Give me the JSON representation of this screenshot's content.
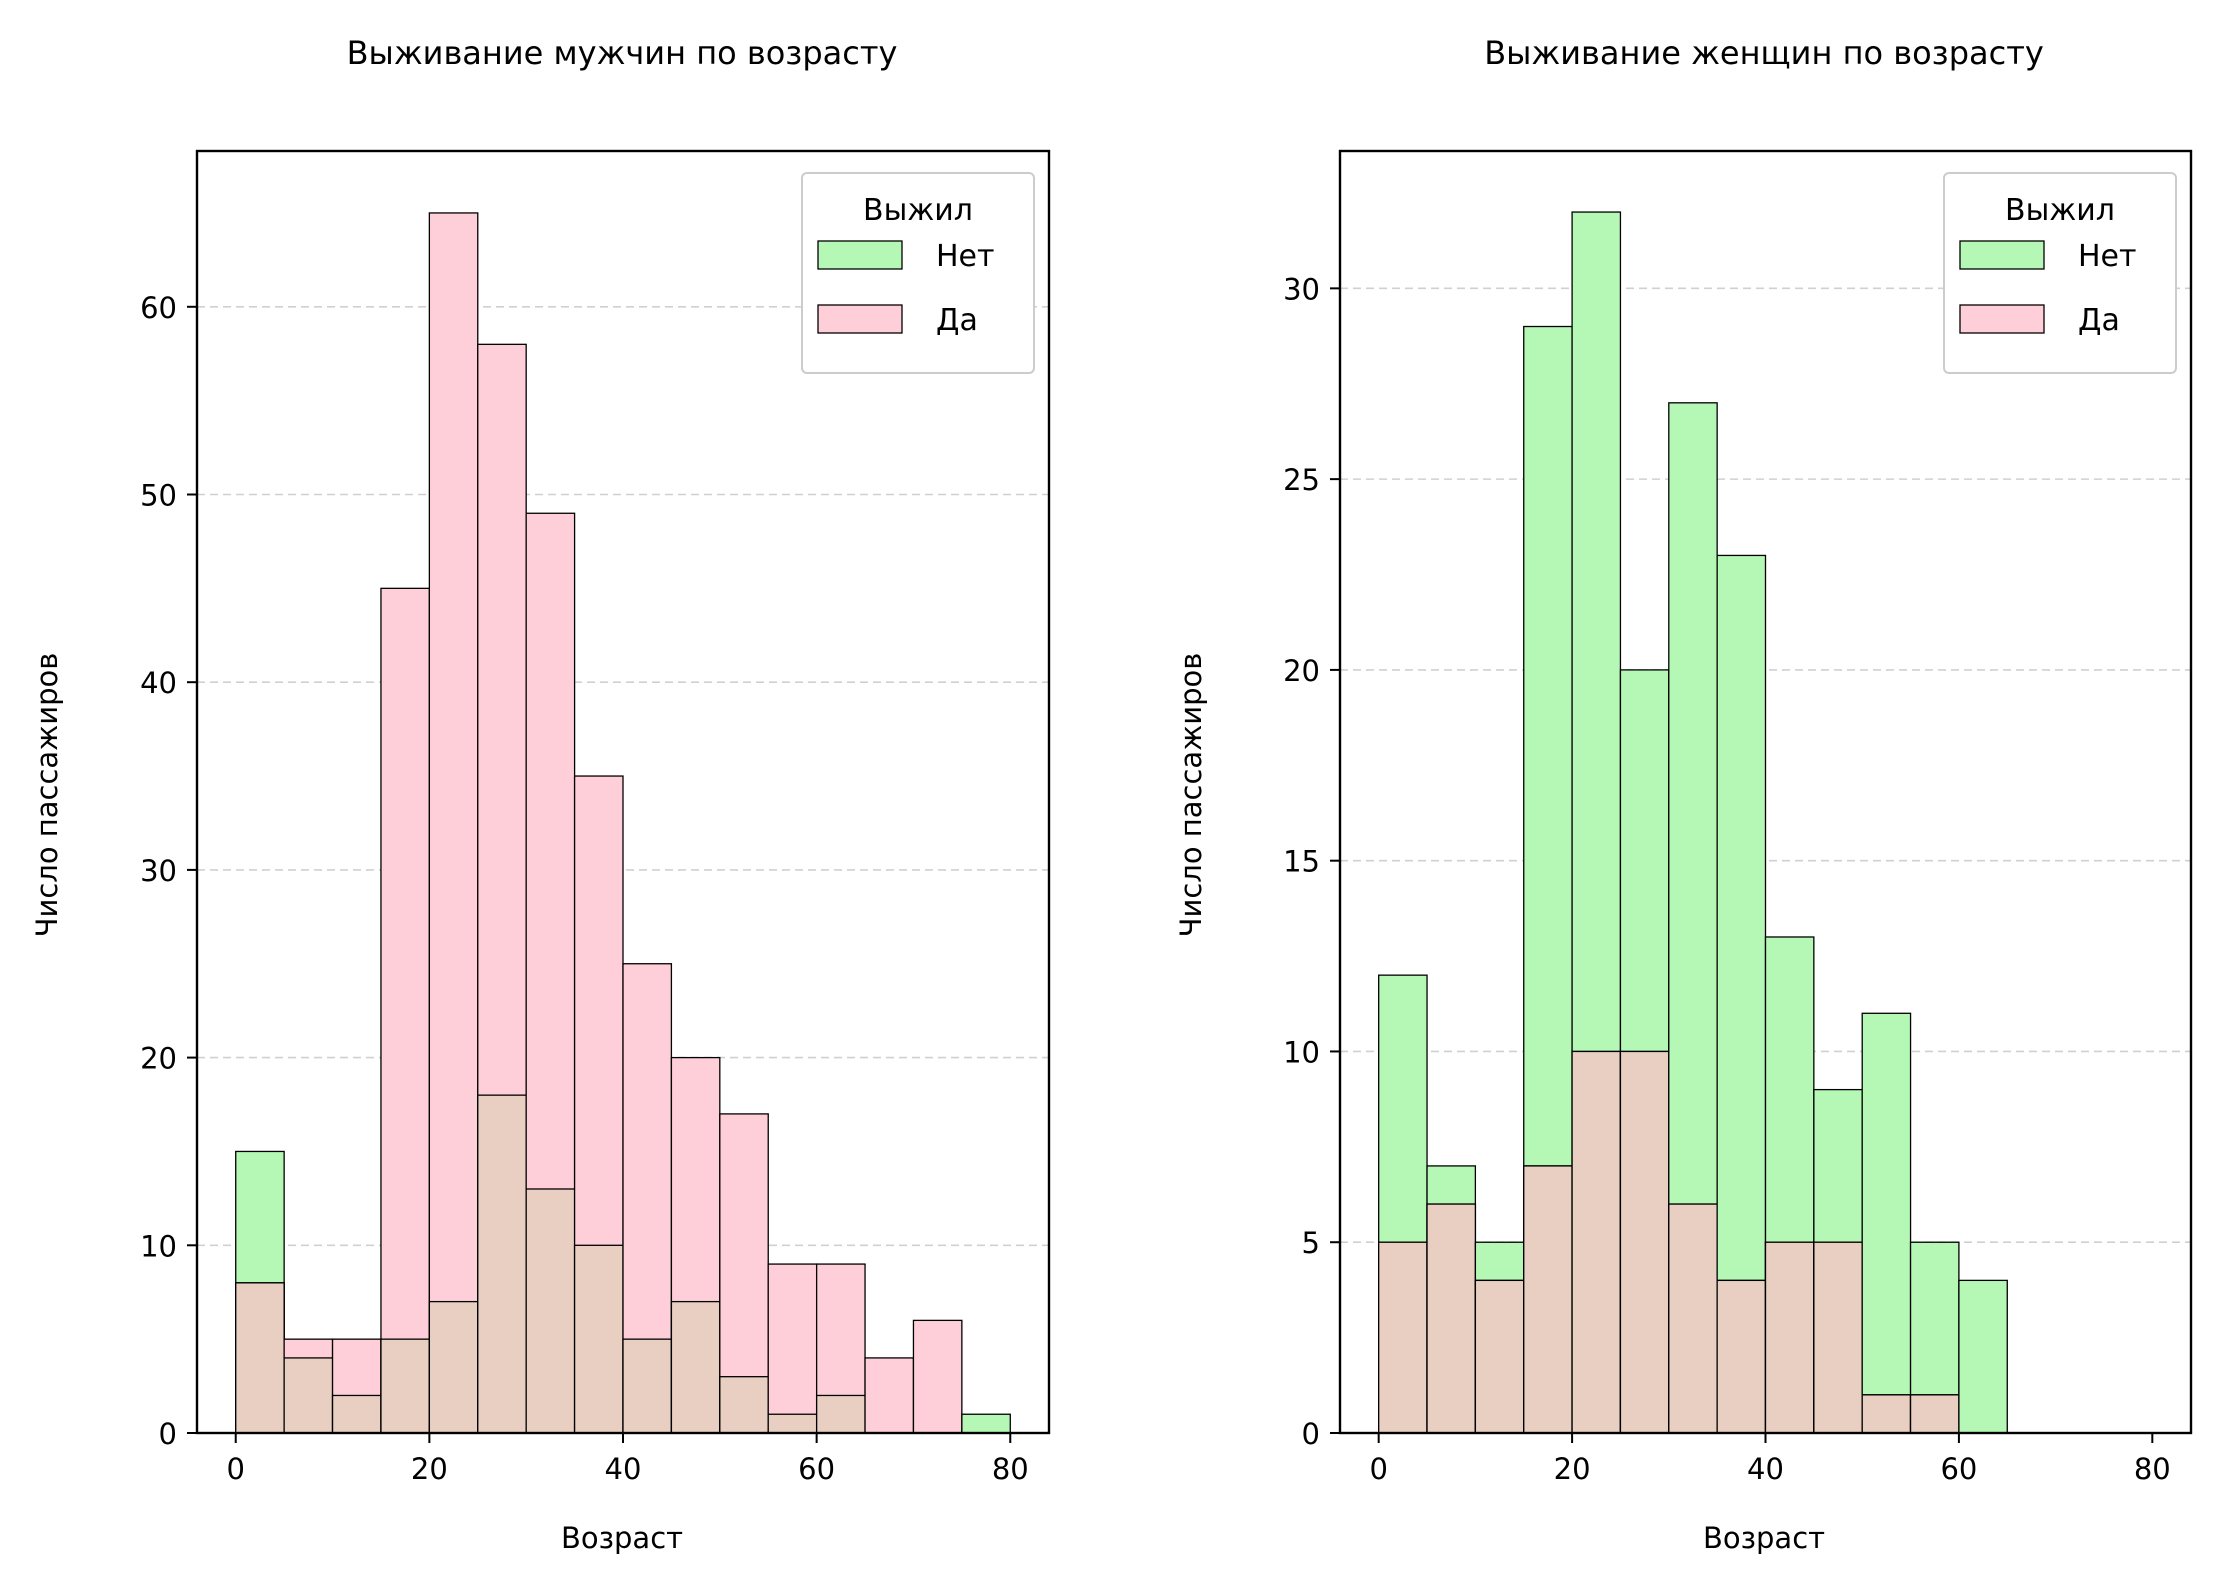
{
  "colors": {
    "green": "#b5f7b5",
    "pink": "#ffcfd9",
    "overlap": "#e8cfc2"
  },
  "chart_data": [
    {
      "type": "bar",
      "title": "Выживание мужчин по возрасту",
      "xlabel": "Возраст",
      "ylabel": "Число пассажиров",
      "xlim": [
        -4,
        84
      ],
      "ylim": [
        0,
        68.3
      ],
      "xticks": [
        0,
        20,
        40,
        60,
        80
      ],
      "yticks": [
        0,
        10,
        20,
        30,
        40,
        50,
        60
      ],
      "bin_width": 5,
      "bins": [
        0,
        5,
        10,
        15,
        20,
        25,
        30,
        35,
        40,
        45,
        50,
        55,
        60,
        65,
        70,
        75
      ],
      "grid": "y, dashed",
      "legend": {
        "title": "Выжил",
        "placement": "top-right",
        "entries": [
          "Нет",
          "Да"
        ]
      },
      "series": [
        {
          "name": "Нет",
          "color": "green",
          "values": [
            15,
            0,
            0,
            0,
            0,
            0,
            0,
            0,
            0,
            0,
            0,
            0,
            0,
            0,
            0,
            1
          ]
        },
        {
          "name": "Да",
          "color": "pink",
          "values": [
            8,
            5,
            5,
            45,
            65,
            58,
            49,
            35,
            25,
            20,
            17,
            9,
            9,
            4,
            6,
            0
          ]
        }
      ],
      "overlap_heights": [
        8,
        4,
        2,
        5,
        7,
        18,
        13,
        10,
        5,
        7,
        3,
        1,
        2,
        0,
        0,
        0
      ]
    },
    {
      "type": "bar",
      "title": "Выживание женщин по возрасту",
      "xlabel": "Возраст",
      "ylabel": "Число пассажиров",
      "xlim": [
        -4,
        84
      ],
      "ylim": [
        0,
        33.6
      ],
      "xticks": [
        0,
        20,
        40,
        60,
        80
      ],
      "yticks": [
        0,
        5,
        10,
        15,
        20,
        25,
        30
      ],
      "bin_width": 5,
      "bins": [
        0,
        5,
        10,
        15,
        20,
        25,
        30,
        35,
        40,
        45,
        50,
        55,
        60
      ],
      "grid": "y, dashed",
      "legend": {
        "title": "Выжил",
        "placement": "top-right",
        "entries": [
          "Нет",
          "Да"
        ]
      },
      "series": [
        {
          "name": "Нет",
          "color": "green",
          "values": [
            12,
            7,
            5,
            29,
            32,
            20,
            27,
            23,
            13,
            9,
            11,
            5,
            4
          ]
        },
        {
          "name": "Да",
          "color": "pink",
          "values": [
            5,
            6,
            4,
            7,
            10,
            10,
            6,
            4,
            5,
            5,
            1,
            1,
            0
          ]
        }
      ],
      "overlap_heights": [
        5,
        6,
        4,
        7,
        10,
        10,
        6,
        4,
        5,
        5,
        1,
        1,
        0
      ]
    }
  ]
}
